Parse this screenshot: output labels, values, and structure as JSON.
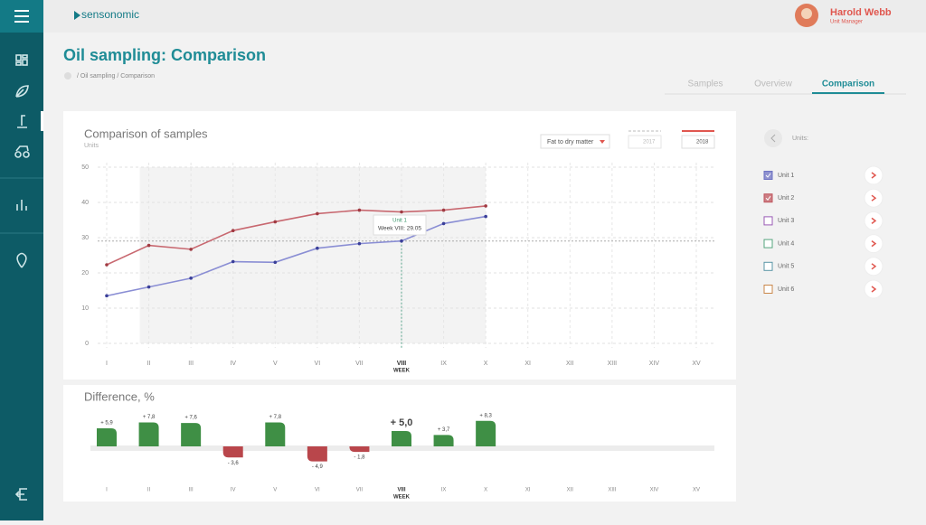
{
  "header": {
    "brand": "sensonomic",
    "user_name": "Harold Webb",
    "user_role": "Unit Manager"
  },
  "page": {
    "title": "Oil sampling: Comparison",
    "breadcrumb": "/ Oil sampling / Comparison",
    "tabs": [
      "Samples",
      "Overview",
      "Comparison"
    ]
  },
  "controls": {
    "measure": "Fat to dry matter",
    "years": [
      "2017",
      "2018"
    ]
  },
  "units_panel": {
    "label": "Units:",
    "units": [
      {
        "name": "Unit 1",
        "color": "#6d72c3",
        "checked": true
      },
      {
        "name": "Unit 2",
        "color": "#c0575f",
        "checked": true
      },
      {
        "name": "Unit 3",
        "color": "#9a5bb5",
        "checked": false
      },
      {
        "name": "Unit 4",
        "color": "#55a57f",
        "checked": false
      },
      {
        "name": "Unit 5",
        "color": "#5a96a6",
        "checked": false
      },
      {
        "name": "Unit 6",
        "color": "#c9874a",
        "checked": false
      }
    ]
  },
  "chart_data": [
    {
      "type": "line",
      "title": "Comparison of samples",
      "ylabel": "Units",
      "xlabel": "WEEK",
      "categories": [
        "I",
        "II",
        "III",
        "IV",
        "V",
        "VI",
        "VII",
        "VIII",
        "IX",
        "X",
        "XI",
        "XII",
        "XIII",
        "XIV",
        "XV"
      ],
      "ylim": [
        0,
        50
      ],
      "yticks": [
        0,
        10,
        20,
        30,
        40,
        50
      ],
      "grid": true,
      "series": [
        {
          "name": "Unit 1",
          "color": "#8a8ed4",
          "values": [
            13.5,
            16,
            18.5,
            23.2,
            23,
            27,
            28.3,
            29.05,
            34,
            36,
            null,
            null,
            null,
            null,
            null
          ]
        },
        {
          "name": "Unit 2",
          "color": "#c86870",
          "values": [
            22.3,
            27.8,
            26.7,
            32,
            34.5,
            36.8,
            37.8,
            37.3,
            37.8,
            39,
            null,
            null,
            null,
            null,
            null
          ]
        }
      ],
      "tooltip": {
        "title": "Unit 1",
        "text": "Week VIII: 29.05"
      }
    },
    {
      "type": "bar",
      "title": "Difference, %",
      "xlabel": "WEEK",
      "categories": [
        "I",
        "II",
        "III",
        "IV",
        "V",
        "VI",
        "VII",
        "VIII",
        "IX",
        "X",
        "XI",
        "XII",
        "XIII",
        "XIV",
        "XV"
      ],
      "positive_color": "#3f8f45",
      "negative_color": "#b9464b",
      "values": [
        5.9,
        7.8,
        7.6,
        -3.6,
        7.8,
        -4.9,
        -1.8,
        5.0,
        3.7,
        8.3,
        null,
        null,
        null,
        null,
        null
      ],
      "value_labels": [
        "+ 5,9",
        "+ 7,8",
        "+ 7,6",
        "- 3,6",
        "+ 7,8",
        "- 4,9",
        "- 1,8",
        "+ 5,0",
        "+ 3,7",
        "+ 8,3",
        null,
        null,
        null,
        null,
        null
      ]
    }
  ]
}
